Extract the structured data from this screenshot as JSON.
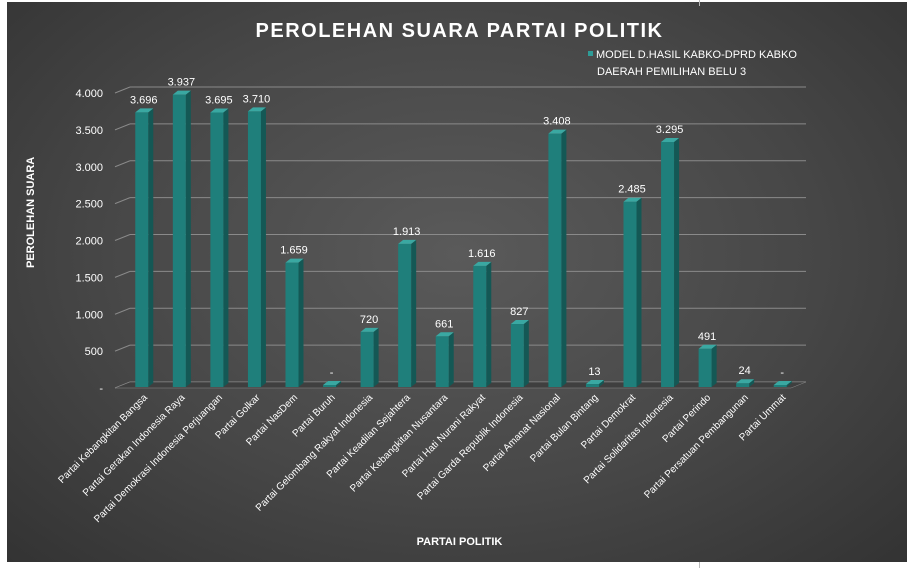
{
  "chart_data": {
    "type": "bar",
    "title": "PEROLEHAN SUARA PARTAI POLITIK",
    "xlabel": "PARTAI POLITIK",
    "ylabel": "PEROLEHAN SUARA",
    "ylim": [
      0,
      4000
    ],
    "yticks": [
      0,
      500,
      1000,
      1500,
      2000,
      2500,
      3000,
      3500,
      4000
    ],
    "ytick_labels": [
      "-",
      "500",
      "1.000",
      "1.500",
      "2.000",
      "2.500",
      "3.000",
      "3.500",
      "4.000"
    ],
    "grid": true,
    "legend_position": "top-right",
    "legend_lines": [
      "MODEL D.HASIL KABKO-DPRD KABKO",
      "DAERAH PEMILIHAN BELU 3"
    ],
    "categories": [
      "Partai Kebangkitan Bangsa",
      "Partai Gerakan Indonesia Raya",
      "Partai Demokrasi Indonesia Perjuangan",
      "Partai Golkar",
      "Partai NasDem",
      "Partai Buruh",
      "Partai Gelombang Rakyat Indonesia",
      "Partai Keadilan Sejahtera",
      "Partai Kebangkitan Nusantara",
      "Partai Hati Nurani Rakyat",
      "Partai Garda Republik Indonesia",
      "Partai Amanat Nasional",
      "Partai Bulan Bintang",
      "Partai Demokrat",
      "Partai Solidaritas Indonesia",
      "Partai Perindo",
      "Partai Persatuan Pembangunan",
      "Partai Ummat"
    ],
    "values": [
      3696,
      3937,
      3695,
      3710,
      1659,
      0,
      720,
      1913,
      661,
      1616,
      827,
      3408,
      13,
      2485,
      3295,
      491,
      24,
      0
    ],
    "data_labels": [
      "3.696",
      "3.937",
      "3.695",
      "3.710",
      "1.659",
      "-",
      "720",
      "1.913",
      "661",
      "1.616",
      "827",
      "3.408",
      "13",
      "2.485",
      "3.295",
      "491",
      "24",
      "-"
    ],
    "colors": {
      "bar": "#1f7f7b",
      "bar_side": "#145855",
      "bar_top": "#3aa8a2",
      "grid": "#8a8a8a",
      "text": "#ffffff"
    }
  }
}
